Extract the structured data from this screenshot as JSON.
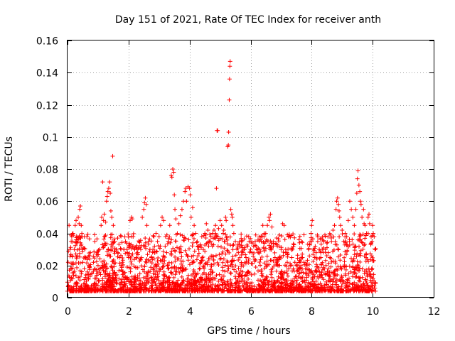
{
  "chart_data": {
    "type": "scatter",
    "title": "Day 151 of 2021, Rate Of TEC Index for receiver anth",
    "xlabel": "GPS time / hours",
    "ylabel": "ROTI / TECUs",
    "xlim": [
      0,
      12
    ],
    "ylim": [
      0,
      0.16
    ],
    "x_ticks": [
      {
        "value": 0,
        "label": "0"
      },
      {
        "value": 2,
        "label": "2"
      },
      {
        "value": 4,
        "label": "4"
      },
      {
        "value": 6,
        "label": "6"
      },
      {
        "value": 8,
        "label": "8"
      },
      {
        "value": 10,
        "label": "10"
      },
      {
        "value": 12,
        "label": "12"
      }
    ],
    "y_ticks": [
      {
        "value": 0,
        "label": "0"
      },
      {
        "value": 0.02,
        "label": "0.02"
      },
      {
        "value": 0.04,
        "label": "0.04"
      },
      {
        "value": 0.06,
        "label": "0.06"
      },
      {
        "value": 0.08,
        "label": "0.08"
      },
      {
        "value": 0.1,
        "label": "0.1"
      },
      {
        "value": 0.12,
        "label": "0.12"
      },
      {
        "value": 0.14,
        "label": "0.14"
      },
      {
        "value": 0.16,
        "label": "0.16"
      }
    ],
    "grid": true,
    "marker": "+",
    "color": "#ff0000",
    "series": [
      {
        "name": "ROTI",
        "points": [
          [
            0.02,
            0.022
          ],
          [
            0.05,
            0.045
          ],
          [
            0.08,
            0.03
          ],
          [
            0.1,
            0.018
          ],
          [
            0.12,
            0.035
          ],
          [
            0.15,
            0.026
          ],
          [
            0.18,
            0.04
          ],
          [
            0.2,
            0.014
          ],
          [
            0.22,
            0.03
          ],
          [
            0.25,
            0.045
          ],
          [
            0.28,
            0.048
          ],
          [
            0.3,
            0.038
          ],
          [
            0.32,
            0.026
          ],
          [
            0.35,
            0.05
          ],
          [
            0.38,
            0.046
          ],
          [
            0.4,
            0.055
          ],
          [
            0.42,
            0.057
          ],
          [
            0.45,
            0.045
          ],
          [
            0.48,
            0.03
          ],
          [
            0.5,
            0.022
          ],
          [
            0.55,
            0.018
          ],
          [
            0.6,
            0.025
          ],
          [
            0.65,
            0.016
          ],
          [
            0.7,
            0.02
          ],
          [
            0.75,
            0.028
          ],
          [
            0.8,
            0.015
          ],
          [
            0.85,
            0.022
          ],
          [
            0.9,
            0.018
          ],
          [
            0.95,
            0.027
          ],
          [
            1.0,
            0.02
          ],
          [
            1.05,
            0.03
          ],
          [
            1.1,
            0.045
          ],
          [
            1.12,
            0.05
          ],
          [
            1.15,
            0.072
          ],
          [
            1.18,
            0.048
          ],
          [
            1.2,
            0.052
          ],
          [
            1.22,
            0.038
          ],
          [
            1.25,
            0.047
          ],
          [
            1.28,
            0.06
          ],
          [
            1.3,
            0.063
          ],
          [
            1.32,
            0.066
          ],
          [
            1.35,
            0.068
          ],
          [
            1.38,
            0.072
          ],
          [
            1.4,
            0.065
          ],
          [
            1.42,
            0.054
          ],
          [
            1.45,
            0.05
          ],
          [
            1.48,
            0.088
          ],
          [
            1.5,
            0.045
          ],
          [
            1.55,
            0.035
          ],
          [
            1.6,
            0.03
          ],
          [
            1.65,
            0.028
          ],
          [
            1.7,
            0.025
          ],
          [
            1.75,
            0.02
          ],
          [
            1.8,
            0.022
          ],
          [
            1.85,
            0.03
          ],
          [
            1.9,
            0.035
          ],
          [
            1.95,
            0.03
          ],
          [
            2.0,
            0.025
          ],
          [
            2.05,
            0.048
          ],
          [
            2.1,
            0.05
          ],
          [
            2.12,
            0.049
          ],
          [
            2.15,
            0.038
          ],
          [
            2.2,
            0.03
          ],
          [
            2.25,
            0.025
          ],
          [
            2.3,
            0.028
          ],
          [
            2.35,
            0.035
          ],
          [
            2.4,
            0.03
          ],
          [
            2.45,
            0.05
          ],
          [
            2.5,
            0.055
          ],
          [
            2.52,
            0.059
          ],
          [
            2.55,
            0.062
          ],
          [
            2.58,
            0.058
          ],
          [
            2.6,
            0.045
          ],
          [
            2.65,
            0.035
          ],
          [
            2.7,
            0.03
          ],
          [
            2.75,
            0.025
          ],
          [
            2.8,
            0.03
          ],
          [
            2.85,
            0.032
          ],
          [
            2.9,
            0.04
          ],
          [
            2.95,
            0.035
          ],
          [
            3.0,
            0.038
          ],
          [
            3.05,
            0.045
          ],
          [
            3.1,
            0.05
          ],
          [
            3.15,
            0.048
          ],
          [
            3.2,
            0.032
          ],
          [
            3.25,
            0.028
          ],
          [
            3.3,
            0.035
          ],
          [
            3.35,
            0.045
          ],
          [
            3.4,
            0.076
          ],
          [
            3.42,
            0.075
          ],
          [
            3.45,
            0.08
          ],
          [
            3.48,
            0.078
          ],
          [
            3.5,
            0.064
          ],
          [
            3.52,
            0.055
          ],
          [
            3.55,
            0.049
          ],
          [
            3.6,
            0.04
          ],
          [
            3.65,
            0.046
          ],
          [
            3.7,
            0.051
          ],
          [
            3.75,
            0.055
          ],
          [
            3.8,
            0.06
          ],
          [
            3.85,
            0.066
          ],
          [
            3.88,
            0.068
          ],
          [
            3.9,
            0.06
          ],
          [
            3.95,
            0.069
          ],
          [
            4.0,
            0.068
          ],
          [
            4.02,
            0.064
          ],
          [
            4.05,
            0.05
          ],
          [
            4.1,
            0.056
          ],
          [
            4.15,
            0.045
          ],
          [
            4.2,
            0.04
          ],
          [
            4.25,
            0.035
          ],
          [
            4.3,
            0.03
          ],
          [
            4.35,
            0.033
          ],
          [
            4.4,
            0.038
          ],
          [
            4.45,
            0.03
          ],
          [
            4.5,
            0.04
          ],
          [
            4.55,
            0.046
          ],
          [
            4.6,
            0.042
          ],
          [
            4.65,
            0.035
          ],
          [
            4.7,
            0.038
          ],
          [
            4.75,
            0.04
          ],
          [
            4.8,
            0.042
          ],
          [
            4.85,
            0.045
          ],
          [
            4.88,
            0.068
          ],
          [
            4.9,
            0.104
          ],
          [
            4.92,
            0.104
          ],
          [
            4.95,
            0.043
          ],
          [
            5.0,
            0.048
          ],
          [
            5.05,
            0.045
          ],
          [
            5.1,
            0.04
          ],
          [
            5.12,
            0.042
          ],
          [
            5.15,
            0.035
          ],
          [
            5.18,
            0.05
          ],
          [
            5.2,
            0.048
          ],
          [
            5.22,
            0.038
          ],
          [
            5.25,
            0.094
          ],
          [
            5.27,
            0.095
          ],
          [
            5.28,
            0.103
          ],
          [
            5.3,
            0.123
          ],
          [
            5.31,
            0.136
          ],
          [
            5.32,
            0.144
          ],
          [
            5.33,
            0.147
          ],
          [
            5.35,
            0.055
          ],
          [
            5.38,
            0.052
          ],
          [
            5.4,
            0.05
          ],
          [
            5.42,
            0.045
          ],
          [
            5.45,
            0.04
          ],
          [
            5.5,
            0.035
          ],
          [
            5.55,
            0.03
          ],
          [
            5.6,
            0.028
          ],
          [
            5.65,
            0.032
          ],
          [
            5.7,
            0.035
          ],
          [
            5.75,
            0.028
          ],
          [
            5.8,
            0.03
          ],
          [
            5.85,
            0.025
          ],
          [
            5.9,
            0.032
          ],
          [
            5.95,
            0.035
          ],
          [
            6.0,
            0.03
          ],
          [
            6.05,
            0.028
          ],
          [
            6.1,
            0.032
          ],
          [
            6.15,
            0.035
          ],
          [
            6.2,
            0.03
          ],
          [
            6.25,
            0.028
          ],
          [
            6.3,
            0.03
          ],
          [
            6.35,
            0.035
          ],
          [
            6.4,
            0.045
          ],
          [
            6.45,
            0.04
          ],
          [
            6.5,
            0.035
          ],
          [
            6.55,
            0.045
          ],
          [
            6.6,
            0.05
          ],
          [
            6.62,
            0.048
          ],
          [
            6.65,
            0.052
          ],
          [
            6.7,
            0.044
          ],
          [
            6.75,
            0.035
          ],
          [
            6.8,
            0.025
          ],
          [
            6.85,
            0.022
          ],
          [
            6.9,
            0.02
          ],
          [
            6.95,
            0.025
          ],
          [
            7.0,
            0.03
          ],
          [
            7.05,
            0.046
          ],
          [
            7.1,
            0.045
          ],
          [
            7.15,
            0.03
          ],
          [
            7.2,
            0.022
          ],
          [
            7.25,
            0.018
          ],
          [
            7.3,
            0.02
          ],
          [
            7.35,
            0.025
          ],
          [
            7.4,
            0.018
          ],
          [
            7.45,
            0.022
          ],
          [
            7.5,
            0.02
          ],
          [
            7.55,
            0.018
          ],
          [
            7.6,
            0.015
          ],
          [
            7.65,
            0.02
          ],
          [
            7.7,
            0.025
          ],
          [
            7.75,
            0.022
          ],
          [
            7.8,
            0.018
          ],
          [
            7.85,
            0.02
          ],
          [
            7.9,
            0.03
          ],
          [
            7.95,
            0.035
          ],
          [
            7.98,
            0.04
          ],
          [
            8.0,
            0.045
          ],
          [
            8.02,
            0.048
          ],
          [
            8.05,
            0.03
          ],
          [
            8.1,
            0.025
          ],
          [
            8.15,
            0.028
          ],
          [
            8.2,
            0.035
          ],
          [
            8.25,
            0.03
          ],
          [
            8.3,
            0.025
          ],
          [
            8.35,
            0.03
          ],
          [
            8.4,
            0.035
          ],
          [
            8.45,
            0.03
          ],
          [
            8.5,
            0.034
          ],
          [
            8.55,
            0.028
          ],
          [
            8.6,
            0.025
          ],
          [
            8.65,
            0.035
          ],
          [
            8.7,
            0.042
          ],
          [
            8.75,
            0.045
          ],
          [
            8.8,
            0.055
          ],
          [
            8.82,
            0.06
          ],
          [
            8.85,
            0.062
          ],
          [
            8.88,
            0.058
          ],
          [
            8.9,
            0.054
          ],
          [
            8.92,
            0.05
          ],
          [
            8.95,
            0.045
          ],
          [
            9.0,
            0.042
          ],
          [
            9.05,
            0.035
          ],
          [
            9.1,
            0.04
          ],
          [
            9.15,
            0.038
          ],
          [
            9.2,
            0.048
          ],
          [
            9.25,
            0.06
          ],
          [
            9.3,
            0.055
          ],
          [
            9.35,
            0.05
          ],
          [
            9.4,
            0.045
          ],
          [
            9.45,
            0.055
          ],
          [
            9.48,
            0.065
          ],
          [
            9.5,
            0.074
          ],
          [
            9.52,
            0.079
          ],
          [
            9.55,
            0.07
          ],
          [
            9.58,
            0.066
          ],
          [
            9.6,
            0.06
          ],
          [
            9.62,
            0.058
          ],
          [
            9.65,
            0.05
          ],
          [
            9.7,
            0.055
          ],
          [
            9.72,
            0.046
          ],
          [
            9.75,
            0.045
          ],
          [
            9.8,
            0.04
          ],
          [
            9.85,
            0.05
          ],
          [
            9.88,
            0.052
          ],
          [
            9.9,
            0.046
          ],
          [
            9.95,
            0.038
          ],
          [
            9.98,
            0.035
          ],
          [
            10.0,
            0.045
          ],
          [
            10.02,
            0.04
          ],
          [
            10.05,
            0.038
          ],
          [
            10.08,
            0.03
          ]
        ]
      }
    ]
  }
}
